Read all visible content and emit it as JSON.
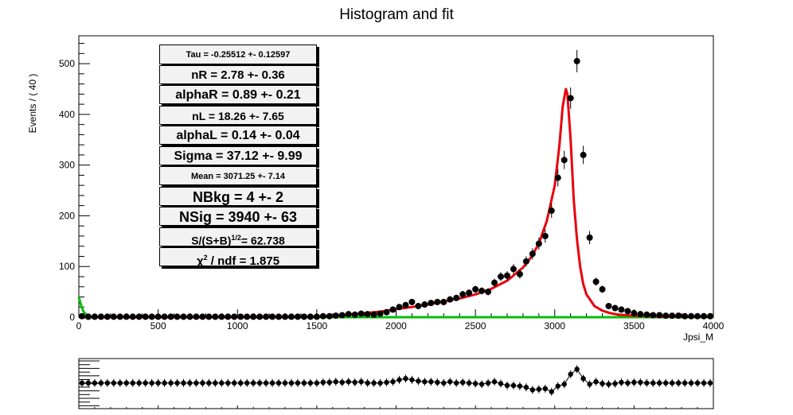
{
  "chart_data": {
    "type": "scatter",
    "title": "Histogram and fit",
    "xlabel": "Jpsi_M",
    "ylabel": "Events / ( 40 )",
    "xlim": [
      0,
      4000
    ],
    "ylim": [
      0,
      555
    ],
    "xticks": [
      0,
      500,
      1000,
      1500,
      2000,
      2500,
      3000,
      3500,
      4000
    ],
    "xtick_labels": [
      "0",
      "500",
      "1000",
      "1500",
      "2000",
      "2500",
      "3000",
      "3500",
      "4000"
    ],
    "yticks": [
      0,
      100,
      200,
      300,
      400,
      500
    ],
    "ytick_labels": [
      "0",
      "100",
      "200",
      "300",
      "400",
      "500"
    ],
    "grid": false,
    "colors": {
      "data": "#000000",
      "fit": "#e8000b",
      "background": "#00c000"
    },
    "series": [
      {
        "kind": "data-points",
        "x": [
          20,
          60,
          100,
          140,
          180,
          220,
          260,
          300,
          340,
          380,
          420,
          460,
          500,
          540,
          580,
          620,
          660,
          700,
          740,
          780,
          820,
          860,
          900,
          940,
          980,
          1020,
          1060,
          1100,
          1140,
          1180,
          1220,
          1260,
          1300,
          1340,
          1380,
          1420,
          1460,
          1500,
          1540,
          1580,
          1620,
          1660,
          1700,
          1740,
          1780,
          1820,
          1860,
          1900,
          1940,
          1980,
          2020,
          2060,
          2100,
          2140,
          2180,
          2220,
          2260,
          2300,
          2340,
          2380,
          2420,
          2460,
          2500,
          2540,
          2580,
          2620,
          2660,
          2700,
          2740,
          2780,
          2820,
          2860,
          2900,
          2940,
          2980,
          3020,
          3060,
          3100,
          3140,
          3180,
          3220,
          3260,
          3300,
          3340,
          3380,
          3420,
          3460,
          3500,
          3540,
          3580,
          3620,
          3660,
          3700,
          3740,
          3780,
          3820,
          3860,
          3900,
          3940,
          3980
        ],
        "y": [
          2,
          1,
          1,
          1,
          1,
          1,
          1,
          1,
          1,
          1,
          1,
          1,
          1,
          1,
          1,
          1,
          1,
          1,
          1,
          1,
          1,
          1,
          1,
          1,
          1,
          1,
          1,
          1,
          1,
          1,
          1,
          1,
          1,
          1,
          1,
          1,
          1,
          1,
          2,
          2,
          3,
          4,
          6,
          5,
          7,
          6,
          5,
          7,
          10,
          15,
          20,
          24,
          30,
          22,
          25,
          28,
          30,
          30,
          35,
          38,
          45,
          48,
          55,
          52,
          50,
          68,
          80,
          82,
          95,
          85,
          110,
          125,
          145,
          160,
          210,
          275,
          310,
          432,
          505,
          320,
          157,
          70,
          55,
          22,
          18,
          15,
          12,
          8,
          6,
          5,
          4,
          4,
          3,
          3,
          3,
          2,
          2,
          2,
          2,
          2
        ],
        "yerr": [
          2,
          1,
          1,
          1,
          1,
          1,
          1,
          1,
          1,
          1,
          1,
          1,
          1,
          1,
          1,
          1,
          1,
          1,
          1,
          1,
          1,
          1,
          1,
          1,
          1,
          1,
          1,
          1,
          1,
          1,
          1,
          1,
          1,
          1,
          1,
          1,
          1,
          1,
          1,
          1,
          2,
          2,
          2,
          2,
          3,
          2,
          2,
          3,
          3,
          4,
          4,
          5,
          5,
          5,
          5,
          5,
          5,
          5,
          6,
          6,
          7,
          7,
          7,
          7,
          7,
          8,
          9,
          9,
          10,
          9,
          10,
          11,
          12,
          13,
          14,
          17,
          18,
          21,
          22,
          18,
          13,
          8,
          7,
          5,
          4,
          4,
          3,
          3,
          2,
          2,
          2,
          2,
          2,
          2,
          2,
          1,
          1,
          1,
          1,
          1
        ]
      },
      {
        "kind": "fit-curve",
        "x": [
          0,
          200,
          400,
          600,
          800,
          1000,
          1200,
          1400,
          1500,
          1600,
          1700,
          1800,
          1900,
          2000,
          2100,
          2200,
          2300,
          2400,
          2500,
          2600,
          2700,
          2800,
          2850,
          2900,
          2950,
          3000,
          3030,
          3050,
          3070,
          3080,
          3100,
          3120,
          3140,
          3160,
          3180,
          3200,
          3250,
          3300,
          3350,
          3400,
          3500,
          3600,
          3700,
          3800,
          4000
        ],
        "y": [
          0,
          0,
          0,
          0,
          0,
          0,
          0,
          1,
          1,
          3,
          5,
          8,
          11,
          16,
          20,
          25,
          31,
          37,
          45,
          56,
          72,
          98,
          118,
          145,
          190,
          260,
          340,
          415,
          450,
          440,
          350,
          230,
          155,
          100,
          65,
          45,
          22,
          13,
          8,
          5,
          3,
          2,
          1,
          1,
          1
        ]
      },
      {
        "kind": "background-curve",
        "x": [
          0,
          10,
          20,
          30,
          40,
          60,
          80,
          100,
          200,
          400,
          1000,
          2000,
          3000,
          4000
        ],
        "y": [
          40,
          28,
          18,
          11,
          7,
          3,
          1,
          0.5,
          0,
          0,
          0,
          0,
          0,
          0
        ]
      }
    ],
    "statbox": [
      "Tau = -0.25512 +- 0.12597",
      "nR = 2.78 +- 0.36",
      "alphaR = 0.89 +- 0.21",
      "nL = 18.26 +- 7.65",
      "alphaL = 0.14 +- 0.04",
      "Sigma = 37.12 +- 9.99",
      "Mean = 3071.25 +- 7.14",
      "NBkg = 4 +- 2",
      "NSig = 3940 +- 63",
      "S/(S+B)",
      "1/2",
      "= 62.738",
      "χ",
      "2",
      " / ndf = 1.875"
    ],
    "pull_panel": {
      "x": [
        20,
        60,
        100,
        140,
        180,
        220,
        260,
        300,
        340,
        380,
        420,
        460,
        500,
        540,
        580,
        620,
        660,
        700,
        740,
        780,
        820,
        860,
        900,
        940,
        980,
        1020,
        1060,
        1100,
        1140,
        1180,
        1220,
        1260,
        1300,
        1340,
        1380,
        1420,
        1460,
        1500,
        1540,
        1580,
        1620,
        1660,
        1700,
        1740,
        1780,
        1820,
        1860,
        1900,
        1940,
        1980,
        2020,
        2060,
        2100,
        2140,
        2180,
        2220,
        2260,
        2300,
        2340,
        2380,
        2420,
        2460,
        2500,
        2540,
        2580,
        2620,
        2660,
        2700,
        2740,
        2780,
        2820,
        2860,
        2900,
        2940,
        2980,
        3020,
        3060,
        3100,
        3140,
        3180,
        3220,
        3260,
        3300,
        3340,
        3380,
        3420,
        3460,
        3500,
        3540,
        3580,
        3620,
        3660,
        3700,
        3740,
        3780,
        3820,
        3860,
        3900,
        3940,
        3980
      ],
      "y": [
        0.1,
        0.1,
        0.1,
        0.1,
        0.1,
        0.1,
        0.1,
        0.1,
        0.1,
        0.1,
        0.1,
        0.1,
        0.1,
        0.1,
        0.1,
        0.1,
        0.1,
        0.1,
        0.1,
        0.1,
        0.1,
        0.1,
        0.1,
        0.1,
        0.1,
        0.1,
        0.1,
        0.1,
        0.1,
        0.1,
        0.1,
        0.1,
        0.1,
        0.1,
        0.1,
        0.1,
        0.1,
        0.1,
        0.2,
        0.2,
        0.3,
        0.2,
        0.3,
        0.2,
        0.3,
        0.1,
        0.1,
        0.1,
        0.2,
        0.3,
        0.6,
        0.8,
        0.6,
        0.4,
        0.3,
        0.3,
        0.2,
        0.1,
        0.3,
        0.1,
        0.2,
        0.1,
        0.0,
        -0.1,
        0.1,
        0.3,
        0.0,
        -0.3,
        -0.3,
        -0.4,
        -0.6,
        -1.0,
        -0.9,
        -0.8,
        -1.3,
        -0.4,
        -0.1,
        1.5,
        2.3,
        0.8,
        -0.1,
        0.3,
        0.0,
        -0.1,
        0.0,
        0.2,
        0.1,
        0.2,
        0.2,
        0.1,
        0.1,
        0.1,
        0.1,
        0.1,
        0.1,
        0.1,
        0.1,
        0.1,
        0.1,
        0.1
      ],
      "ylim": [
        -4,
        4
      ]
    }
  }
}
